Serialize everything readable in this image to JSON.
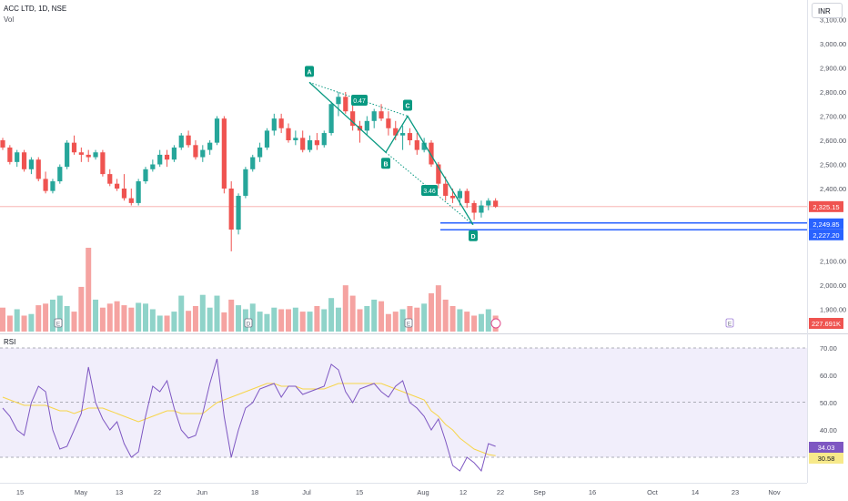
{
  "header": {
    "symbol": "ACC LTD, 1D, NSE",
    "volume_label": "Vol",
    "currency_button": "INR"
  },
  "rsi_pane": {
    "label": "RSI",
    "rsi_value": "34.03",
    "ma_value": "30.58",
    "levels": [
      "70.00",
      "60.00",
      "50.00",
      "40.00"
    ]
  },
  "colors": {
    "up": "#26a69a",
    "down": "#ef5350",
    "pattern": "#089981",
    "rsi": "#7e57c2",
    "rsi_ma": "#f7d54a",
    "level_line": "#2962ff"
  },
  "chart_data": {
    "type": "candlestick",
    "title": "ACC LTD, 1D, NSE",
    "y_ticks": [
      "3,100.00",
      "3,000.00",
      "2,900.00",
      "2,800.00",
      "2,700.00",
      "2,600.00",
      "2,500.00",
      "2,400.00",
      "2,100.00",
      "2,000.00",
      "1,900.00"
    ],
    "x_ticks": [
      "15",
      "May",
      "13",
      "22",
      "Jun",
      "18",
      "Jul",
      "15",
      "Aug",
      "12",
      "22",
      "Sep",
      "16",
      "Oct",
      "14",
      "23",
      "Nov"
    ],
    "ylim": [
      1820,
      3120
    ],
    "last_price": "2,325.15",
    "price_levels": [
      "2,249.85",
      "2,227.20"
    ],
    "volume_last": "227.691K",
    "events": [
      "E",
      "D",
      "E",
      "E"
    ],
    "pattern": {
      "points": [
        {
          "label": "A",
          "price": 2840
        },
        {
          "label": "B",
          "price": 2550
        },
        {
          "label": "C",
          "price": 2700
        },
        {
          "label": "D",
          "price": 2250
        }
      ],
      "ratios": [
        "0.47",
        "3.46"
      ]
    },
    "series": [
      {
        "name": "candles",
        "ohlc": [
          [
            2600,
            2610,
            2560,
            2570
          ],
          [
            2570,
            2580,
            2500,
            2510
          ],
          [
            2510,
            2560,
            2490,
            2550
          ],
          [
            2550,
            2560,
            2470,
            2480
          ],
          [
            2480,
            2530,
            2460,
            2520
          ],
          [
            2520,
            2530,
            2430,
            2440
          ],
          [
            2440,
            2470,
            2380,
            2390
          ],
          [
            2390,
            2440,
            2380,
            2430
          ],
          [
            2430,
            2500,
            2420,
            2490
          ],
          [
            2490,
            2600,
            2480,
            2590
          ],
          [
            2590,
            2620,
            2540,
            2550
          ],
          [
            2550,
            2570,
            2510,
            2540
          ],
          [
            2540,
            2560,
            2510,
            2530
          ],
          [
            2530,
            2560,
            2520,
            2550
          ],
          [
            2550,
            2560,
            2450,
            2460
          ],
          [
            2460,
            2480,
            2410,
            2420
          ],
          [
            2420,
            2440,
            2390,
            2400
          ],
          [
            2400,
            2460,
            2350,
            2360
          ],
          [
            2360,
            2400,
            2330,
            2340
          ],
          [
            2340,
            2440,
            2330,
            2430
          ],
          [
            2430,
            2490,
            2420,
            2480
          ],
          [
            2480,
            2520,
            2470,
            2500
          ],
          [
            2500,
            2560,
            2490,
            2540
          ],
          [
            2540,
            2560,
            2490,
            2520
          ],
          [
            2520,
            2580,
            2510,
            2570
          ],
          [
            2570,
            2630,
            2560,
            2620
          ],
          [
            2620,
            2640,
            2570,
            2580
          ],
          [
            2580,
            2600,
            2520,
            2530
          ],
          [
            2530,
            2580,
            2510,
            2560
          ],
          [
            2560,
            2600,
            2540,
            2590
          ],
          [
            2590,
            2700,
            2580,
            2690
          ],
          [
            2690,
            2700,
            2380,
            2400
          ],
          [
            2400,
            2430,
            2140,
            2230
          ],
          [
            2230,
            2380,
            2210,
            2370
          ],
          [
            2370,
            2490,
            2360,
            2480
          ],
          [
            2480,
            2540,
            2470,
            2530
          ],
          [
            2530,
            2590,
            2510,
            2570
          ],
          [
            2570,
            2650,
            2560,
            2640
          ],
          [
            2640,
            2710,
            2620,
            2690
          ],
          [
            2690,
            2710,
            2630,
            2650
          ],
          [
            2650,
            2670,
            2590,
            2600
          ],
          [
            2600,
            2640,
            2580,
            2610
          ],
          [
            2610,
            2640,
            2550,
            2560
          ],
          [
            2560,
            2620,
            2550,
            2600
          ],
          [
            2600,
            2630,
            2560,
            2580
          ],
          [
            2580,
            2640,
            2570,
            2630
          ],
          [
            2630,
            2760,
            2620,
            2750
          ],
          [
            2750,
            2800,
            2700,
            2780
          ],
          [
            2780,
            2800,
            2710,
            2720
          ],
          [
            2720,
            2760,
            2640,
            2660
          ],
          [
            2660,
            2680,
            2590,
            2640
          ],
          [
            2640,
            2700,
            2620,
            2680
          ],
          [
            2680,
            2730,
            2650,
            2720
          ],
          [
            2720,
            2750,
            2680,
            2690
          ],
          [
            2690,
            2720,
            2620,
            2650
          ],
          [
            2650,
            2680,
            2600,
            2620
          ],
          [
            2620,
            2660,
            2560,
            2630
          ],
          [
            2630,
            2650,
            2580,
            2600
          ],
          [
            2600,
            2630,
            2540,
            2560
          ],
          [
            2560,
            2610,
            2550,
            2590
          ],
          [
            2590,
            2600,
            2490,
            2500
          ],
          [
            2500,
            2510,
            2400,
            2420
          ],
          [
            2420,
            2450,
            2350,
            2370
          ],
          [
            2370,
            2400,
            2340,
            2360
          ],
          [
            2360,
            2400,
            2330,
            2390
          ],
          [
            2390,
            2400,
            2320,
            2340
          ],
          [
            2340,
            2350,
            2270,
            2300
          ],
          [
            2300,
            2350,
            2280,
            2330
          ],
          [
            2330,
            2360,
            2310,
            2350
          ],
          [
            2350,
            2360,
            2320,
            2325
          ]
        ]
      },
      {
        "name": "volume",
        "values": [
          30,
          20,
          28,
          20,
          22,
          33,
          35,
          40,
          45,
          32,
          25,
          56,
          105,
          40,
          30,
          35,
          38,
          33,
          30,
          36,
          35,
          28,
          20,
          20,
          25,
          45,
          26,
          32,
          46,
          30,
          45,
          24,
          40,
          33,
          28,
          35,
          25,
          22,
          30,
          28,
          28,
          30,
          25,
          25,
          32,
          28,
          42,
          30,
          58,
          45,
          28,
          32,
          40,
          38,
          22,
          25,
          28,
          32,
          30,
          35,
          48,
          58,
          40,
          32,
          28,
          25,
          20,
          22,
          28,
          20
        ]
      },
      {
        "name": "RSI",
        "values": [
          48,
          45,
          40,
          38,
          50,
          56,
          54,
          40,
          33,
          34,
          40,
          46,
          63,
          50,
          44,
          40,
          43,
          35,
          30,
          32,
          45,
          56,
          54,
          58,
          48,
          40,
          37,
          38,
          46,
          57,
          66,
          45,
          30,
          40,
          48,
          50,
          55,
          56,
          57,
          52,
          56,
          56,
          53,
          54,
          55,
          56,
          64,
          62,
          54,
          50,
          55,
          56,
          57,
          54,
          52,
          56,
          58,
          50,
          48,
          45,
          40,
          44,
          36,
          27,
          25,
          30,
          28,
          25,
          35,
          34
        ]
      },
      {
        "name": "RSI MA",
        "values": [
          52,
          51,
          50,
          49,
          49,
          49,
          49,
          48,
          47,
          47,
          46,
          47,
          48,
          48,
          48,
          47,
          46,
          45,
          44,
          43,
          44,
          45,
          46,
          47,
          47,
          46,
          46,
          46,
          46,
          48,
          50,
          51,
          52,
          53,
          54,
          55,
          56,
          57,
          57,
          56,
          56,
          56,
          55,
          55,
          55,
          55,
          56,
          57,
          57,
          57,
          57,
          57,
          57,
          57,
          56,
          55,
          54,
          53,
          52,
          51,
          47,
          45,
          42,
          40,
          37,
          35,
          33,
          32,
          31,
          30.58
        ]
      }
    ]
  }
}
